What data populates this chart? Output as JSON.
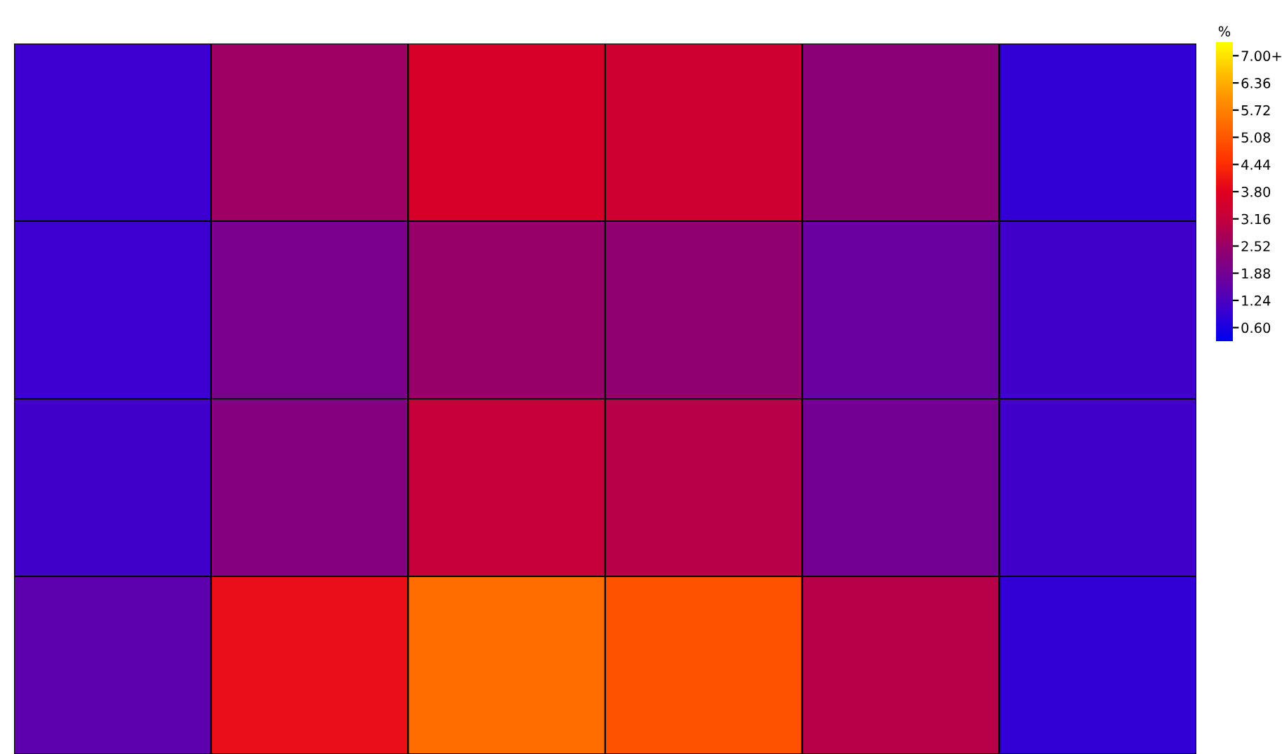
{
  "chart_data": {
    "type": "heatmap",
    "categories": [
      null,
      null,
      null,
      null,
      null,
      null
    ],
    "y_categories": [
      null,
      null,
      null,
      null
    ],
    "cells": [
      [
        1.0,
        2.6,
        3.6,
        3.4,
        2.3,
        0.9
      ],
      [
        1.0,
        2.0,
        2.5,
        2.4,
        1.7,
        1.1
      ],
      [
        1.1,
        2.2,
        3.2,
        3.0,
        1.9,
        1.1
      ],
      [
        1.5,
        4.0,
        5.4,
        5.0,
        3.0,
        0.9
      ]
    ],
    "clabel": "%",
    "clim": [
      0.28,
      7.32
    ],
    "cticks": [
      {
        "value": 7.0,
        "label": "7.00+"
      },
      {
        "value": 6.36,
        "label": "6.36"
      },
      {
        "value": 5.72,
        "label": "5.72"
      },
      {
        "value": 5.08,
        "label": "5.08"
      },
      {
        "value": 4.44,
        "label": "4.44"
      },
      {
        "value": 3.8,
        "label": "3.80"
      },
      {
        "value": 3.16,
        "label": "3.16"
      },
      {
        "value": 2.52,
        "label": "2.52"
      },
      {
        "value": 1.88,
        "label": "1.88"
      },
      {
        "value": 1.24,
        "label": "1.24"
      },
      {
        "value": 0.6,
        "label": "0.60"
      }
    ],
    "colors": [
      "#0000f0",
      "#3a00d0",
      "#6a00a0",
      "#900070",
      "#c00040",
      "#e00020",
      "#ff3000",
      "#ff6000",
      "#ff8c00",
      "#ffc000",
      "#ffff00"
    ]
  }
}
